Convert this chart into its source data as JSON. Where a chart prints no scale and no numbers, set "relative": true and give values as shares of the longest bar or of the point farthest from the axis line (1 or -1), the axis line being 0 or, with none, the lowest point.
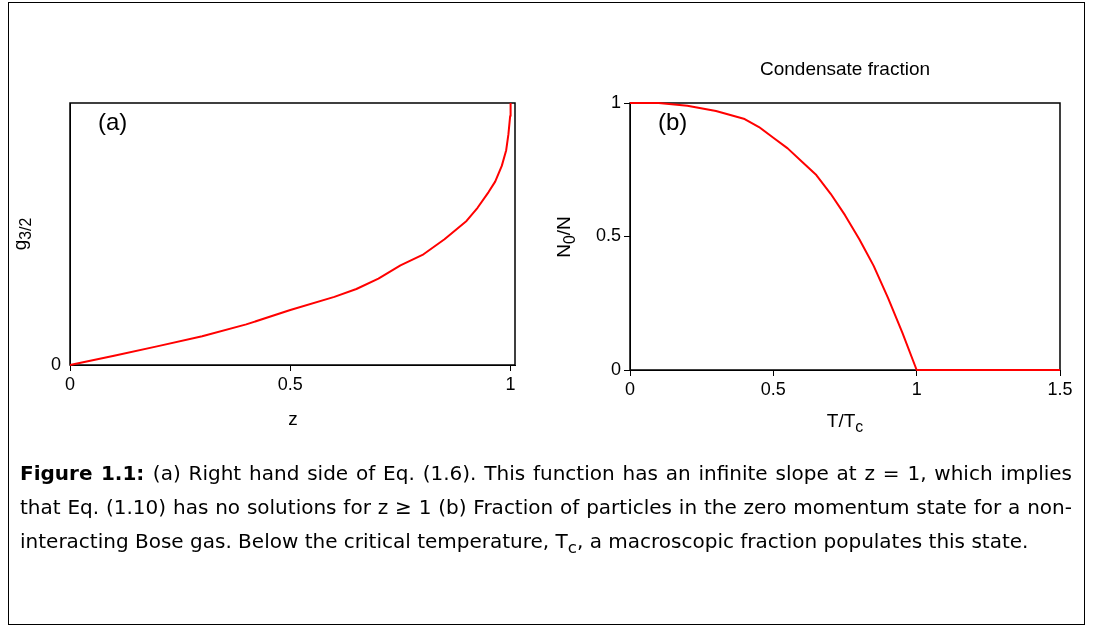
{
  "chart_data": [
    {
      "type": "line",
      "xlabel": "z",
      "ylabel": "g$_{3/2}$",
      "relative": true,
      "xlim": [
        0,
        1.01
      ],
      "xticks": [
        0,
        0.5,
        1
      ],
      "grid": false,
      "legend": false,
      "annotations": [
        "(a)",
        {
          "text": "0",
          "x": 0,
          "y": 0
        }
      ],
      "series": [
        {
          "color": "#ff0000",
          "x": [
            0,
            0.1,
            0.2,
            0.3,
            0.4,
            0.5,
            0.6,
            0.65,
            0.7,
            0.75,
            0.8,
            0.85,
            0.9,
            0.925,
            0.95,
            0.965,
            0.98,
            0.99,
            0.995,
            0.999,
            1
          ],
          "values": [
            0,
            0.035,
            0.072,
            0.11,
            0.155,
            0.21,
            0.26,
            0.29,
            0.33,
            0.38,
            0.42,
            0.48,
            0.55,
            0.6,
            0.66,
            0.7,
            0.76,
            0.82,
            0.88,
            0.95,
            1
          ]
        }
      ]
    },
    {
      "type": "line",
      "title": "Condensate fraction",
      "xlabel": "T/T$_{c}$",
      "ylabel": "N$_{0}$/N",
      "xlim": [
        0,
        1.5
      ],
      "xticks": [
        0,
        0.5,
        1,
        1.5
      ],
      "ylim": [
        0,
        1
      ],
      "yticks": [
        0,
        0.5,
        1
      ],
      "grid": false,
      "legend": false,
      "annotations": [
        "(b)",
        "Figure 1.1:",
        "(a) Right hand side of Eq. (1.6). This function has an infinite slope at z = 1, which implies that Eq. (1.10) has no solutions for z ≥ 1 (b) Fraction of particles in the zero momentum state for a non-interacting Bose gas. Below the critical temperature, T$_{c}$, a macroscopic fraction populates this state."
      ],
      "series": [
        {
          "color": "#ff0000",
          "x": [
            0,
            0.1,
            0.2,
            0.3,
            0.4,
            0.45,
            0.5,
            0.55,
            0.6,
            0.65,
            0.7,
            0.75,
            0.8,
            0.85,
            0.9,
            0.95,
            1,
            1.5
          ],
          "values": [
            1,
            1,
            0.99,
            0.97,
            0.94,
            0.91,
            0.87,
            0.83,
            0.78,
            0.73,
            0.66,
            0.58,
            0.49,
            0.39,
            0.27,
            0.14,
            0,
            0
          ]
        }
      ]
    }
  ]
}
